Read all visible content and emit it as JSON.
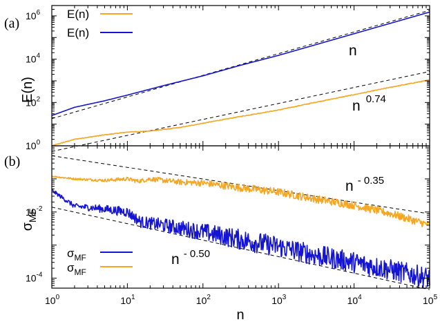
{
  "figure": {
    "xlabel_text": "n"
  },
  "colors": {
    "orange": "#f5a623",
    "blue": "#1414d2",
    "ref": "#000000"
  },
  "chart_data": [
    {
      "type": "line",
      "panel_label": "(a)",
      "ylabel": "E(n)",
      "xscale": "log",
      "yscale": "log",
      "xlim": [
        1,
        100000
      ],
      "ylim": [
        1,
        3000000
      ],
      "xticks": [
        {
          "base": "10",
          "exp": "0",
          "value": 1
        },
        {
          "base": "10",
          "exp": "1",
          "value": 10
        },
        {
          "base": "10",
          "exp": "2",
          "value": 100
        },
        {
          "base": "10",
          "exp": "3",
          "value": 1000
        },
        {
          "base": "10",
          "exp": "4",
          "value": 10000
        },
        {
          "base": "10",
          "exp": "5",
          "value": 100000
        }
      ],
      "yticks": [
        {
          "base": "10",
          "exp": "0",
          "value": 1
        },
        {
          "base": "10",
          "exp": "2",
          "value": 100
        },
        {
          "base": "10",
          "exp": "4",
          "value": 10000
        },
        {
          "base": "10",
          "exp": "6",
          "value": 1000000
        }
      ],
      "legend": {
        "placement": "top-left",
        "entries": [
          {
            "label": "E(n)",
            "series": "orange"
          },
          {
            "label": "E(n)",
            "series": "blue"
          }
        ]
      },
      "series": [
        {
          "key": "blue",
          "color": "#1414d2",
          "x": [
            1,
            2,
            5,
            10,
            30,
            100,
            300,
            1000,
            3000,
            10000,
            30000,
            100000
          ],
          "y": [
            25,
            60,
            120,
            220,
            600,
            1700,
            5000,
            15000,
            45000,
            150000,
            450000,
            1500000
          ]
        },
        {
          "key": "orange",
          "color": "#f5a623",
          "x": [
            1,
            2,
            5,
            10,
            20,
            50,
            100,
            300,
            1000,
            3000,
            10000,
            30000,
            100000
          ],
          "y": [
            1,
            2,
            3.2,
            4.3,
            4.8,
            7,
            11,
            22,
            45,
            100,
            230,
            500,
            1100
          ]
        }
      ],
      "reference_lines": [
        {
          "label": "n",
          "exponent": "",
          "slope": 1.0,
          "x": [
            1,
            100000
          ],
          "y": [
            18,
            1800000
          ]
        },
        {
          "label": "n",
          "exponent": "0.74",
          "slope": 0.74,
          "x": [
            1,
            100000
          ],
          "y": [
            0.55,
            2700
          ]
        }
      ]
    },
    {
      "type": "line",
      "panel_label": "(b)",
      "ylabel": "σ",
      "ylabel_sub": "MF",
      "xscale": "log",
      "yscale": "log",
      "xlim": [
        1,
        100000
      ],
      "ylim": [
        5e-05,
        1
      ],
      "yticks": [
        {
          "base": "10",
          "exp": "-4",
          "value": 0.0001
        },
        {
          "base": "10",
          "exp": "-2",
          "value": 0.01
        }
      ],
      "legend": {
        "placement": "bottom-left",
        "entries": [
          {
            "label": "σ",
            "sub": "MF",
            "series": "blue"
          },
          {
            "label": "σ",
            "sub": "MF",
            "series": "orange"
          }
        ]
      },
      "series": [
        {
          "key": "orange",
          "color": "#f5a623",
          "x": [
            1,
            2,
            5,
            10,
            14,
            20,
            30,
            50,
            100,
            300,
            1000,
            3000,
            10000,
            30000,
            100000
          ],
          "y": [
            0.12,
            0.1,
            0.09,
            0.1,
            0.085,
            0.1,
            0.09,
            0.08,
            0.075,
            0.055,
            0.04,
            0.025,
            0.016,
            0.009,
            0.004
          ],
          "noise": 0.12
        },
        {
          "key": "blue",
          "color": "#1414d2",
          "x": [
            1,
            2,
            4,
            10,
            15,
            30,
            100,
            300,
            1000,
            3000,
            10000,
            30000,
            100000
          ],
          "y": [
            0.045,
            0.015,
            0.013,
            0.01,
            0.005,
            0.004,
            0.0025,
            0.0015,
            0.0009,
            0.0005,
            0.0003,
            0.00018,
            0.0001
          ],
          "noise": 0.32
        }
      ],
      "reference_lines": [
        {
          "label": "n",
          "exponent": "- 0.35",
          "slope": -0.35,
          "x": [
            1,
            100000
          ],
          "y": [
            0.5,
            0.0088
          ]
        },
        {
          "label": "n",
          "exponent": "- 0.50",
          "slope": -0.5,
          "x": [
            1,
            100000
          ],
          "y": [
            0.014,
            4.5e-05
          ]
        }
      ]
    }
  ]
}
